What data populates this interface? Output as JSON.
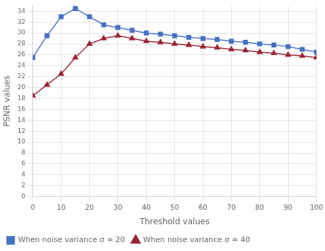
{
  "chart_data": {
    "type": "line",
    "xlabel": "Threshold values",
    "ylabel": "PSNR values",
    "x": [
      0,
      5,
      10,
      15,
      20,
      25,
      30,
      35,
      40,
      45,
      50,
      55,
      60,
      65,
      70,
      75,
      80,
      85,
      90,
      95,
      100
    ],
    "series": [
      {
        "name": "When noise variance σ = 20",
        "color": "#4472C4",
        "marker": "square",
        "values": [
          25.5,
          29.5,
          33.0,
          34.5,
          33.0,
          31.5,
          31.0,
          30.5,
          30.0,
          29.8,
          29.5,
          29.2,
          29.0,
          28.8,
          28.5,
          28.3,
          28.0,
          27.8,
          27.5,
          27.0,
          26.5
        ]
      },
      {
        "name": "When noise variance σ = 40",
        "color": "#9B2335",
        "marker": "triangle",
        "values": [
          18.5,
          20.5,
          22.5,
          25.5,
          28.0,
          29.0,
          29.5,
          29.0,
          28.5,
          28.3,
          28.0,
          27.8,
          27.5,
          27.3,
          27.0,
          26.8,
          26.5,
          26.3,
          26.0,
          25.8,
          25.5
        ]
      }
    ],
    "xlim": [
      0,
      100
    ],
    "xticks": [
      0,
      10,
      20,
      30,
      40,
      50,
      60,
      70,
      80,
      90,
      100
    ],
    "ylim": [
      0,
      35
    ],
    "yticks": [
      0,
      2,
      4,
      6,
      8,
      10,
      12,
      14,
      16,
      18,
      20,
      22,
      24,
      26,
      28,
      30,
      32,
      34
    ],
    "grid": true,
    "legend": "bottom"
  }
}
